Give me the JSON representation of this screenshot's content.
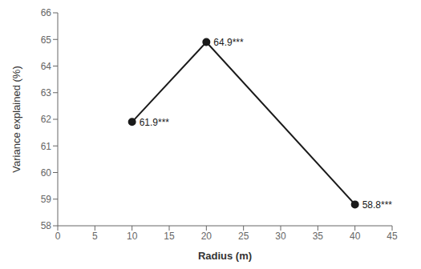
{
  "chart_data": {
    "type": "line",
    "x": [
      10,
      20,
      40
    ],
    "values": [
      61.9,
      64.9,
      58.8
    ],
    "value_labels": [
      "61.9***",
      "64.9***",
      "58.8***"
    ],
    "xlabel": "Radius (m)",
    "ylabel": "Variance explained (%)",
    "xlim": [
      0,
      45
    ],
    "ylim": [
      58,
      66
    ],
    "xticks": [
      0,
      5,
      10,
      15,
      20,
      25,
      30,
      35,
      40,
      45
    ],
    "yticks": [
      58,
      59,
      60,
      61,
      62,
      63,
      64,
      65,
      66
    ],
    "color": "#1a1a1a",
    "marker": "circle",
    "grid": false
  }
}
